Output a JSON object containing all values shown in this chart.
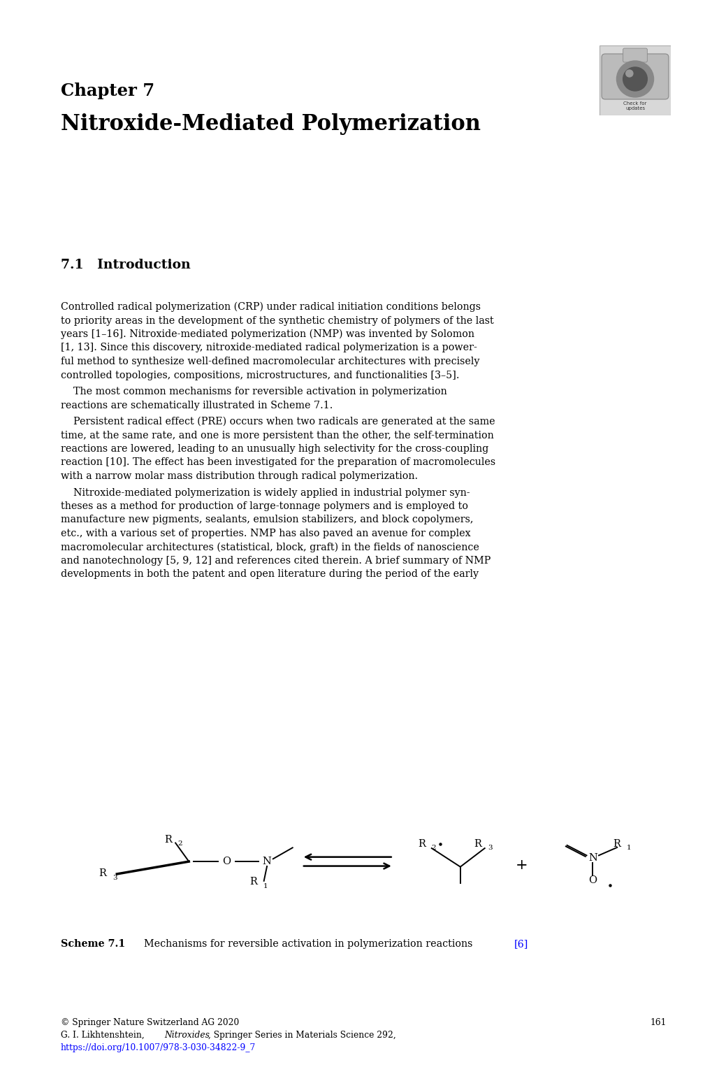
{
  "bg_color": "#ffffff",
  "page_width": 10.2,
  "page_height": 15.46,
  "chapter_label": "Chapter 7",
  "chapter_title": "Nitroxide-Mediated Polymerization",
  "section_title": "7.1   Introduction",
  "scheme_caption_bold": "Scheme 7.1",
  "scheme_caption_normal": "  Mechanisms for reversible activation in polymerization reactions ",
  "scheme_caption_link": "[6]",
  "footer_line1": "© Springer Nature Switzerland AG 2020",
  "footer_page": "161",
  "footer_line2_normal": "G. I. Likhtenshtein, ",
  "footer_line2_italic": "Nitroxides",
  "footer_line2_rest": ", Springer Series in Materials Science 292,",
  "footer_line3": "https://doi.org/10.1007/978-3-030-34822-9_7",
  "link_color": "#0000ff",
  "text_color": "#000000",
  "title_color": "#000000",
  "p1_lines": [
    "Controlled radical polymerization (CRP) under radical initiation conditions belongs",
    "to priority areas in the development of the synthetic chemistry of polymers of the last",
    "years [1–16]. Nitroxide-mediated polymerization (NMP) was invented by Solomon",
    "[1, 13]. Since this discovery, nitroxide-mediated radical polymerization is a power-",
    "ful method to synthesize well-defined macromolecular architectures with precisely",
    "controlled topologies, compositions, microstructures, and functionalities [3–5]."
  ],
  "p2_lines": [
    "    The most common mechanisms for reversible activation in polymerization",
    "reactions are schematically illustrated in Scheme 7.1."
  ],
  "p3_lines": [
    "    Persistent radical effect (PRE) occurs when two radicals are generated at the same",
    "time, at the same rate, and one is more persistent than the other, the self-termination",
    "reactions are lowered, leading to an unusually high selectivity for the cross-coupling",
    "reaction [10]. The effect has been investigated for the preparation of macromolecules",
    "with a narrow molar mass distribution through radical polymerization."
  ],
  "p4_lines": [
    "    Nitroxide-mediated polymerization is widely applied in industrial polymer syn-",
    "theses as a method for production of large-tonnage polymers and is employed to",
    "manufacture new pigments, sealants, emulsion stabilizers, and block copolymers,",
    "etc., with a various set of properties. NMP has also paved an avenue for complex",
    "macromolecular architectures (statistical, block, graft) in the fields of nanoscience",
    "and nanotechnology [5, 9, 12] and references cited therein. A brief summary of NMP",
    "developments in both the patent and open literature during the period of the early"
  ]
}
